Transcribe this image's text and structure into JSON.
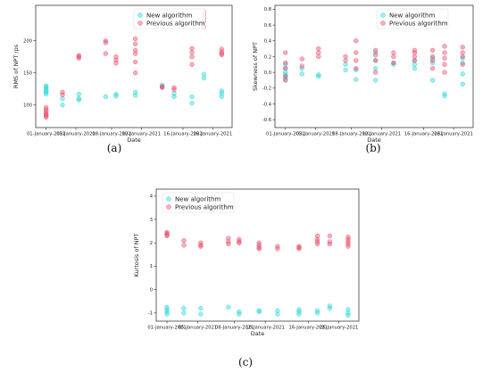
{
  "colors": {
    "new": "#2fd6d6",
    "previous": "#e8506e"
  },
  "chart_data": [
    {
      "type": "scatter",
      "subcaption": "(a)",
      "xlabel": "Date",
      "ylabel": "RMS of NPT /ps",
      "ylim": [
        65,
        255
      ],
      "yticks": [
        100,
        150,
        200
      ],
      "categories": [
        "01-January-2021",
        "05-January-2021",
        "08-January-2021",
        "10-January-2021",
        "16-January-2021",
        "26-January-2021"
      ],
      "legend_position": "top-right",
      "series": [
        {
          "name": "New algorithm",
          "points": [
            [
              0.0,
              130
            ],
            [
              0.0,
              128
            ],
            [
              0.0,
              125
            ],
            [
              0.0,
              122
            ],
            [
              0.0,
              120
            ],
            [
              0.0,
              117
            ],
            [
              0.55,
              100
            ],
            [
              0.55,
              110
            ],
            [
              1.1,
              110
            ],
            [
              1.1,
              117
            ],
            [
              1.1,
              108
            ],
            [
              2.0,
              113
            ],
            [
              2.35,
              117
            ],
            [
              2.35,
              114
            ],
            [
              3.0,
              120
            ],
            [
              3.0,
              115
            ],
            [
              3.9,
              131
            ],
            [
              3.9,
              128
            ],
            [
              4.3,
              118
            ],
            [
              4.3,
              113
            ],
            [
              4.9,
              113
            ],
            [
              4.9,
              103
            ],
            [
              5.3,
              148
            ],
            [
              5.3,
              142
            ],
            [
              5.9,
              122
            ],
            [
              5.9,
              118
            ],
            [
              5.9,
              113
            ]
          ]
        },
        {
          "name": "Previous algorithm",
          "points": [
            [
              0.0,
              96
            ],
            [
              0.0,
              93
            ],
            [
              0.0,
              90
            ],
            [
              0.0,
              87
            ],
            [
              0.0,
              85
            ],
            [
              0.0,
              83
            ],
            [
              0.0,
              81
            ],
            [
              0.55,
              120
            ],
            [
              0.55,
              116
            ],
            [
              1.1,
              177
            ],
            [
              1.1,
              175
            ],
            [
              1.1,
              173
            ],
            [
              2.0,
              200
            ],
            [
              2.0,
              197
            ],
            [
              2.0,
              180
            ],
            [
              2.35,
              175
            ],
            [
              2.35,
              170
            ],
            [
              2.35,
              165
            ],
            [
              3.0,
              203
            ],
            [
              3.0,
              195
            ],
            [
              3.0,
              185
            ],
            [
              3.0,
              180
            ],
            [
              3.0,
              167
            ],
            [
              3.0,
              150
            ],
            [
              3.9,
              129
            ],
            [
              3.9,
              127
            ],
            [
              4.3,
              127
            ],
            [
              4.3,
              124
            ],
            [
              4.9,
              188
            ],
            [
              4.9,
              182
            ],
            [
              4.9,
              175
            ],
            [
              4.9,
              163
            ],
            [
              5.3,
              245
            ],
            [
              5.3,
              240
            ],
            [
              5.3,
              235
            ],
            [
              5.3,
              230
            ],
            [
              5.3,
              222
            ],
            [
              5.9,
              187
            ],
            [
              5.9,
              183
            ],
            [
              5.9,
              180
            ],
            [
              5.9,
              178
            ]
          ]
        }
      ]
    },
    {
      "type": "scatter",
      "subcaption": "(b)",
      "xlabel": "Date",
      "ylabel": "Skewness of NPT",
      "ylim": [
        -0.7,
        0.85
      ],
      "yticks": [
        -0.6,
        -0.4,
        -0.2,
        0.0,
        0.2,
        0.4,
        0.6,
        0.8
      ],
      "categories": [
        "01-January-2021",
        "05-January-2021",
        "08-January-2021",
        "10-January-2021",
        "16-January-2021",
        "26-January-2021"
      ],
      "legend_position": "top-right",
      "series": [
        {
          "name": "New algorithm",
          "points": [
            [
              0.0,
              0.1
            ],
            [
              0.0,
              0.05
            ],
            [
              0.0,
              0.0
            ],
            [
              0.0,
              -0.03
            ],
            [
              0.0,
              -0.06
            ],
            [
              0.0,
              -0.09
            ],
            [
              0.55,
              0.05
            ],
            [
              0.55,
              -0.02
            ],
            [
              1.1,
              -0.03
            ],
            [
              1.1,
              -0.05
            ],
            [
              2.0,
              0.1
            ],
            [
              2.0,
              0.03
            ],
            [
              2.35,
              0.03
            ],
            [
              2.35,
              -0.09
            ],
            [
              3.0,
              0.25
            ],
            [
              3.0,
              0.15
            ],
            [
              3.0,
              0.05
            ],
            [
              3.0,
              -0.1
            ],
            [
              3.6,
              0.12
            ],
            [
              3.6,
              0.1
            ],
            [
              4.3,
              0.15
            ],
            [
              4.3,
              0.1
            ],
            [
              4.3,
              0.05
            ],
            [
              4.9,
              0.18
            ],
            [
              4.9,
              0.12
            ],
            [
              4.9,
              -0.1
            ],
            [
              5.3,
              -0.27
            ],
            [
              5.3,
              -0.3
            ],
            [
              5.9,
              0.18
            ],
            [
              5.9,
              0.12
            ],
            [
              5.9,
              -0.02
            ],
            [
              5.9,
              -0.15
            ]
          ]
        },
        {
          "name": "Previous algorithm",
          "points": [
            [
              0.0,
              0.25
            ],
            [
              0.0,
              0.12
            ],
            [
              0.0,
              0.05
            ],
            [
              0.0,
              -0.05
            ],
            [
              0.0,
              -0.1
            ],
            [
              0.55,
              0.17
            ],
            [
              0.55,
              0.08
            ],
            [
              1.1,
              0.3
            ],
            [
              1.1,
              0.25
            ],
            [
              1.1,
              0.2
            ],
            [
              2.0,
              0.2
            ],
            [
              2.0,
              0.15
            ],
            [
              2.35,
              0.4
            ],
            [
              2.35,
              0.25
            ],
            [
              2.35,
              0.15
            ],
            [
              2.35,
              0.05
            ],
            [
              3.0,
              0.28
            ],
            [
              3.0,
              0.22
            ],
            [
              3.0,
              0.15
            ],
            [
              3.0,
              0.0
            ],
            [
              3.6,
              0.25
            ],
            [
              3.6,
              0.2
            ],
            [
              3.6,
              0.12
            ],
            [
              4.3,
              0.28
            ],
            [
              4.3,
              0.25
            ],
            [
              4.3,
              0.2
            ],
            [
              4.3,
              0.15
            ],
            [
              4.9,
              0.28
            ],
            [
              4.9,
              0.2
            ],
            [
              4.9,
              0.15
            ],
            [
              4.9,
              0.05
            ],
            [
              5.3,
              0.33
            ],
            [
              5.3,
              0.25
            ],
            [
              5.3,
              0.18
            ],
            [
              5.3,
              0.1
            ],
            [
              5.3,
              0.0
            ],
            [
              5.9,
              0.32
            ],
            [
              5.9,
              0.25
            ],
            [
              5.9,
              0.2
            ],
            [
              5.9,
              0.1
            ]
          ]
        }
      ]
    },
    {
      "type": "scatter",
      "subcaption": "(c)",
      "xlabel": "Date",
      "ylabel": "Kurtosis of NPT",
      "ylim": [
        -1.35,
        4.3
      ],
      "yticks": [
        -1,
        0,
        1,
        2,
        3,
        4
      ],
      "categories": [
        "01-January-2021",
        "05-January-2021",
        "08-January-2021",
        "10-January-2021",
        "16-January-2021",
        "26-January-2021"
      ],
      "legend_position": "top-left",
      "series": [
        {
          "name": "New algorithm",
          "points": [
            [
              0.0,
              -0.75
            ],
            [
              0.0,
              -0.85
            ],
            [
              0.0,
              -0.95
            ],
            [
              0.0,
              -1.05
            ],
            [
              0.55,
              -0.8
            ],
            [
              0.55,
              -1.0
            ],
            [
              1.1,
              -0.8
            ],
            [
              1.1,
              -1.05
            ],
            [
              2.0,
              -0.75
            ],
            [
              2.35,
              -0.95
            ],
            [
              2.35,
              -1.05
            ],
            [
              3.0,
              -0.9
            ],
            [
              3.0,
              -0.95
            ],
            [
              3.6,
              -0.9
            ],
            [
              3.6,
              -1.05
            ],
            [
              4.3,
              -0.85
            ],
            [
              4.3,
              -0.95
            ],
            [
              4.3,
              -1.05
            ],
            [
              4.9,
              -0.9
            ],
            [
              4.9,
              -1.0
            ],
            [
              5.3,
              -0.7
            ],
            [
              5.3,
              -0.8
            ],
            [
              5.9,
              -0.85
            ],
            [
              5.9,
              -1.0
            ],
            [
              5.9,
              -1.1
            ]
          ]
        },
        {
          "name": "Previous algorithm",
          "points": [
            [
              0.0,
              2.45
            ],
            [
              0.0,
              2.4
            ],
            [
              0.0,
              2.35
            ],
            [
              0.0,
              2.3
            ],
            [
              0.55,
              2.1
            ],
            [
              0.55,
              1.9
            ],
            [
              1.1,
              2.0
            ],
            [
              1.1,
              1.9
            ],
            [
              1.1,
              1.85
            ],
            [
              2.0,
              2.2
            ],
            [
              2.0,
              2.05
            ],
            [
              2.0,
              1.95
            ],
            [
              2.35,
              2.15
            ],
            [
              2.35,
              2.05
            ],
            [
              2.35,
              2.0
            ],
            [
              3.0,
              2.0
            ],
            [
              3.0,
              1.9
            ],
            [
              3.0,
              1.8
            ],
            [
              3.0,
              1.75
            ],
            [
              3.6,
              1.85
            ],
            [
              3.6,
              1.75
            ],
            [
              4.3,
              1.85
            ],
            [
              4.3,
              1.8
            ],
            [
              4.3,
              1.75
            ],
            [
              4.9,
              2.3
            ],
            [
              4.9,
              2.15
            ],
            [
              4.9,
              2.05
            ],
            [
              4.9,
              1.95
            ],
            [
              5.3,
              2.3
            ],
            [
              5.3,
              2.05
            ],
            [
              5.3,
              1.95
            ],
            [
              5.9,
              2.25
            ],
            [
              5.9,
              2.15
            ],
            [
              5.9,
              2.05
            ],
            [
              5.9,
              1.95
            ],
            [
              5.9,
              1.85
            ]
          ]
        }
      ]
    }
  ]
}
